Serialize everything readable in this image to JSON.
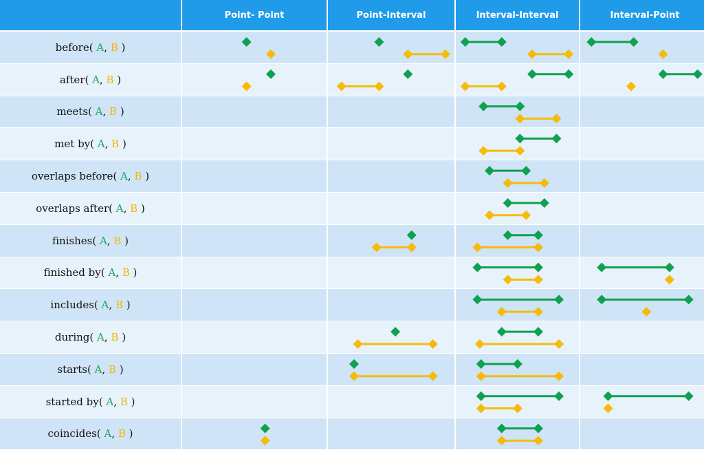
{
  "header": {
    "corner": "",
    "columns": [
      "Point- Point",
      "Point-Interval",
      "Interval-Interval",
      "Interval-Point"
    ]
  },
  "colors": {
    "A": "#0fa14f",
    "B": "#f6bb0a",
    "row_odd": "#cfe4f6",
    "row_even": "#e7f2fb",
    "header": "#1f9bea"
  },
  "rows": [
    {
      "name": "before",
      "a": "A",
      "b": "B"
    },
    {
      "name": "after",
      "a": "A",
      "b": "B"
    },
    {
      "name": "meets",
      "a": "A",
      "b": "B"
    },
    {
      "name": "met by",
      "a": "A",
      "b": "B"
    },
    {
      "name": "overlaps before",
      "a": "A",
      "b": "B"
    },
    {
      "name": "overlaps after",
      "a": "A",
      "b": "B"
    },
    {
      "name": "finishes",
      "a": "A",
      "b": "B"
    },
    {
      "name": "finished by",
      "a": "A",
      "b": "B"
    },
    {
      "name": "includes",
      "a": "A",
      "b": "B"
    },
    {
      "name": "during",
      "a": "A",
      "b": "B"
    },
    {
      "name": "starts",
      "a": "A",
      "b": "B"
    },
    {
      "name": "started by",
      "a": "A",
      "b": "B"
    },
    {
      "name": "coincides",
      "a": "A",
      "b": "B"
    }
  ],
  "relations": [
    {
      "row": 0,
      "col": 0,
      "A": [
        0.45
      ],
      "B": [
        0.62
      ]
    },
    {
      "row": 0,
      "col": 1,
      "A": [
        0.42
      ],
      "B": [
        0.65,
        0.95
      ]
    },
    {
      "row": 0,
      "col": 2,
      "A": [
        0.1,
        0.4
      ],
      "B": [
        0.65,
        0.95
      ]
    },
    {
      "row": 0,
      "col": 3,
      "A": [
        0.12,
        0.45
      ],
      "B": [
        0.68
      ]
    },
    {
      "row": 1,
      "col": 0,
      "A": [
        0.62
      ],
      "B": [
        0.45
      ]
    },
    {
      "row": 1,
      "col": 2,
      "A": [
        0.65,
        0.95
      ],
      "B": [
        0.1,
        0.4
      ]
    },
    {
      "row": 1,
      "col": 1,
      "A": [
        0.65
      ],
      "B": [
        0.12,
        0.42
      ]
    },
    {
      "row": 1,
      "col": 3,
      "A": [
        0.68,
        0.95
      ],
      "B": [
        0.43
      ]
    },
    {
      "row": 2,
      "col": 2,
      "A": [
        0.25,
        0.55
      ],
      "B": [
        0.55,
        0.85
      ]
    },
    {
      "row": 3,
      "col": 2,
      "A": [
        0.55,
        0.85
      ],
      "B": [
        0.25,
        0.55
      ]
    },
    {
      "row": 4,
      "col": 2,
      "A": [
        0.3,
        0.6
      ],
      "B": [
        0.45,
        0.75
      ]
    },
    {
      "row": 5,
      "col": 2,
      "A": [
        0.45,
        0.75
      ],
      "B": [
        0.3,
        0.6
      ]
    },
    {
      "row": 6,
      "col": 1,
      "A": [
        0.68
      ],
      "B": [
        0.4,
        0.68
      ]
    },
    {
      "row": 6,
      "col": 2,
      "A": [
        0.45,
        0.7
      ],
      "B": [
        0.2,
        0.7
      ]
    },
    {
      "row": 7,
      "col": 2,
      "A": [
        0.2,
        0.7
      ],
      "B": [
        0.45,
        0.7
      ]
    },
    {
      "row": 7,
      "col": 3,
      "A": [
        0.2,
        0.73
      ],
      "B": [
        0.73
      ]
    },
    {
      "row": 8,
      "col": 2,
      "A": [
        0.2,
        0.87
      ],
      "B": [
        0.4,
        0.7
      ]
    },
    {
      "row": 8,
      "col": 3,
      "A": [
        0.2,
        0.88
      ],
      "B": [
        0.55
      ]
    },
    {
      "row": 9,
      "col": 1,
      "A": [
        0.55
      ],
      "B": [
        0.25,
        0.85
      ]
    },
    {
      "row": 9,
      "col": 2,
      "A": [
        0.4,
        0.7
      ],
      "B": [
        0.22,
        0.87
      ]
    },
    {
      "row": 10,
      "col": 1,
      "A": [
        0.22
      ],
      "B": [
        0.22,
        0.85
      ]
    },
    {
      "row": 10,
      "col": 2,
      "A": [
        0.23,
        0.53
      ],
      "B": [
        0.23,
        0.87
      ]
    },
    {
      "row": 11,
      "col": 2,
      "A": [
        0.23,
        0.87
      ],
      "B": [
        0.23,
        0.53
      ]
    },
    {
      "row": 11,
      "col": 3,
      "A": [
        0.25,
        0.88
      ],
      "B": [
        0.25
      ]
    },
    {
      "row": 12,
      "col": 0,
      "A": [
        0.58
      ],
      "B": [
        0.58
      ]
    },
    {
      "row": 12,
      "col": 2,
      "A": [
        0.4,
        0.7
      ],
      "B": [
        0.4,
        0.7
      ]
    }
  ]
}
